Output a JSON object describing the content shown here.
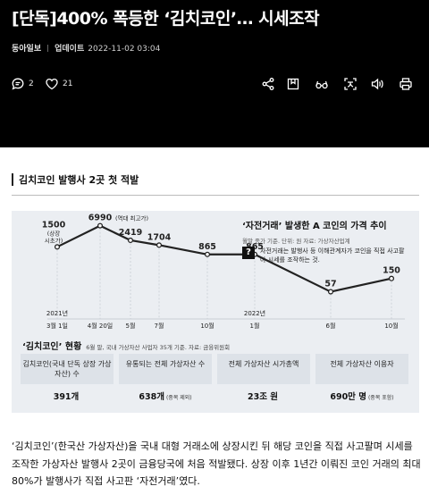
{
  "header": {
    "title": "[단독]400% 폭등한 ‘김치코인’… 시세조작",
    "source": "동아일보",
    "update_label": "업데이트",
    "update_time": "2022-11-02 03:04",
    "comment_count": "2",
    "like_count": "21",
    "icons": [
      "comment-icon",
      "heart-icon",
      "share-icon",
      "bookmark-icon",
      "glasses-icon",
      "translate-icon",
      "audio-icon",
      "print-icon"
    ]
  },
  "infographic": {
    "heading": "김치코인 발행사 2곳 첫 적발",
    "callout": {
      "title": "‘자전거래’ 발생한 A 코인의 가격 추이",
      "subtitle": "월말 종가 기준. 단위: 원  자료: 가상자산업계",
      "question": "?",
      "explanation": "자전거래는 발행사 등 이해관계자가 코인을 직접 사고팔아 시세를 조작하는 것."
    },
    "status": {
      "title": "‘김치코인’ 현황",
      "note": "6월 말, 국내 가상자산 사업자 35개 기준.  자료: 금융위원회",
      "cards": [
        {
          "label": "김치코인(국내 단독 상장 가상자산) 수",
          "value": "391개",
          "note": ""
        },
        {
          "label": "유통되는 전체 가상자산 수",
          "value": "638개",
          "note": "(중복 제외)"
        },
        {
          "label": "전체 가상자산 시가총액",
          "value": "23조 원",
          "note": ""
        },
        {
          "label": "전체 가상자산 이용자",
          "value": "690만 명",
          "note": "(중복 포함)"
        }
      ]
    }
  },
  "chart_data": {
    "type": "line",
    "x": [
      "2021년 3월 1일",
      "4월 20일",
      "5월",
      "7월",
      "10월",
      "2022년 1월",
      "6월",
      "10월"
    ],
    "values": [
      1500,
      6990,
      2419,
      1704,
      865,
      865,
      57,
      150
    ],
    "annotations": [
      {
        "x": "2021년 3월 1일",
        "text": "(상장 시초가)"
      },
      {
        "x": "4월 20일",
        "text": "(역대 최고가)"
      }
    ],
    "line_color": "#222222"
  },
  "body": {
    "text": "‘김치코인’(한국산 가상자산)을 국내 대형 거래소에 상장시킨 뒤 해당 코인을 직접 사고팔며 시세를 조작한 가상자산 발행사 2곳이 금융당국에 처음 적발됐다. 상장 이후 1년간 이뤄진 코인 거래의 최대 80%가 발행사가 직접 사고판 ‘자전거래’였다."
  }
}
